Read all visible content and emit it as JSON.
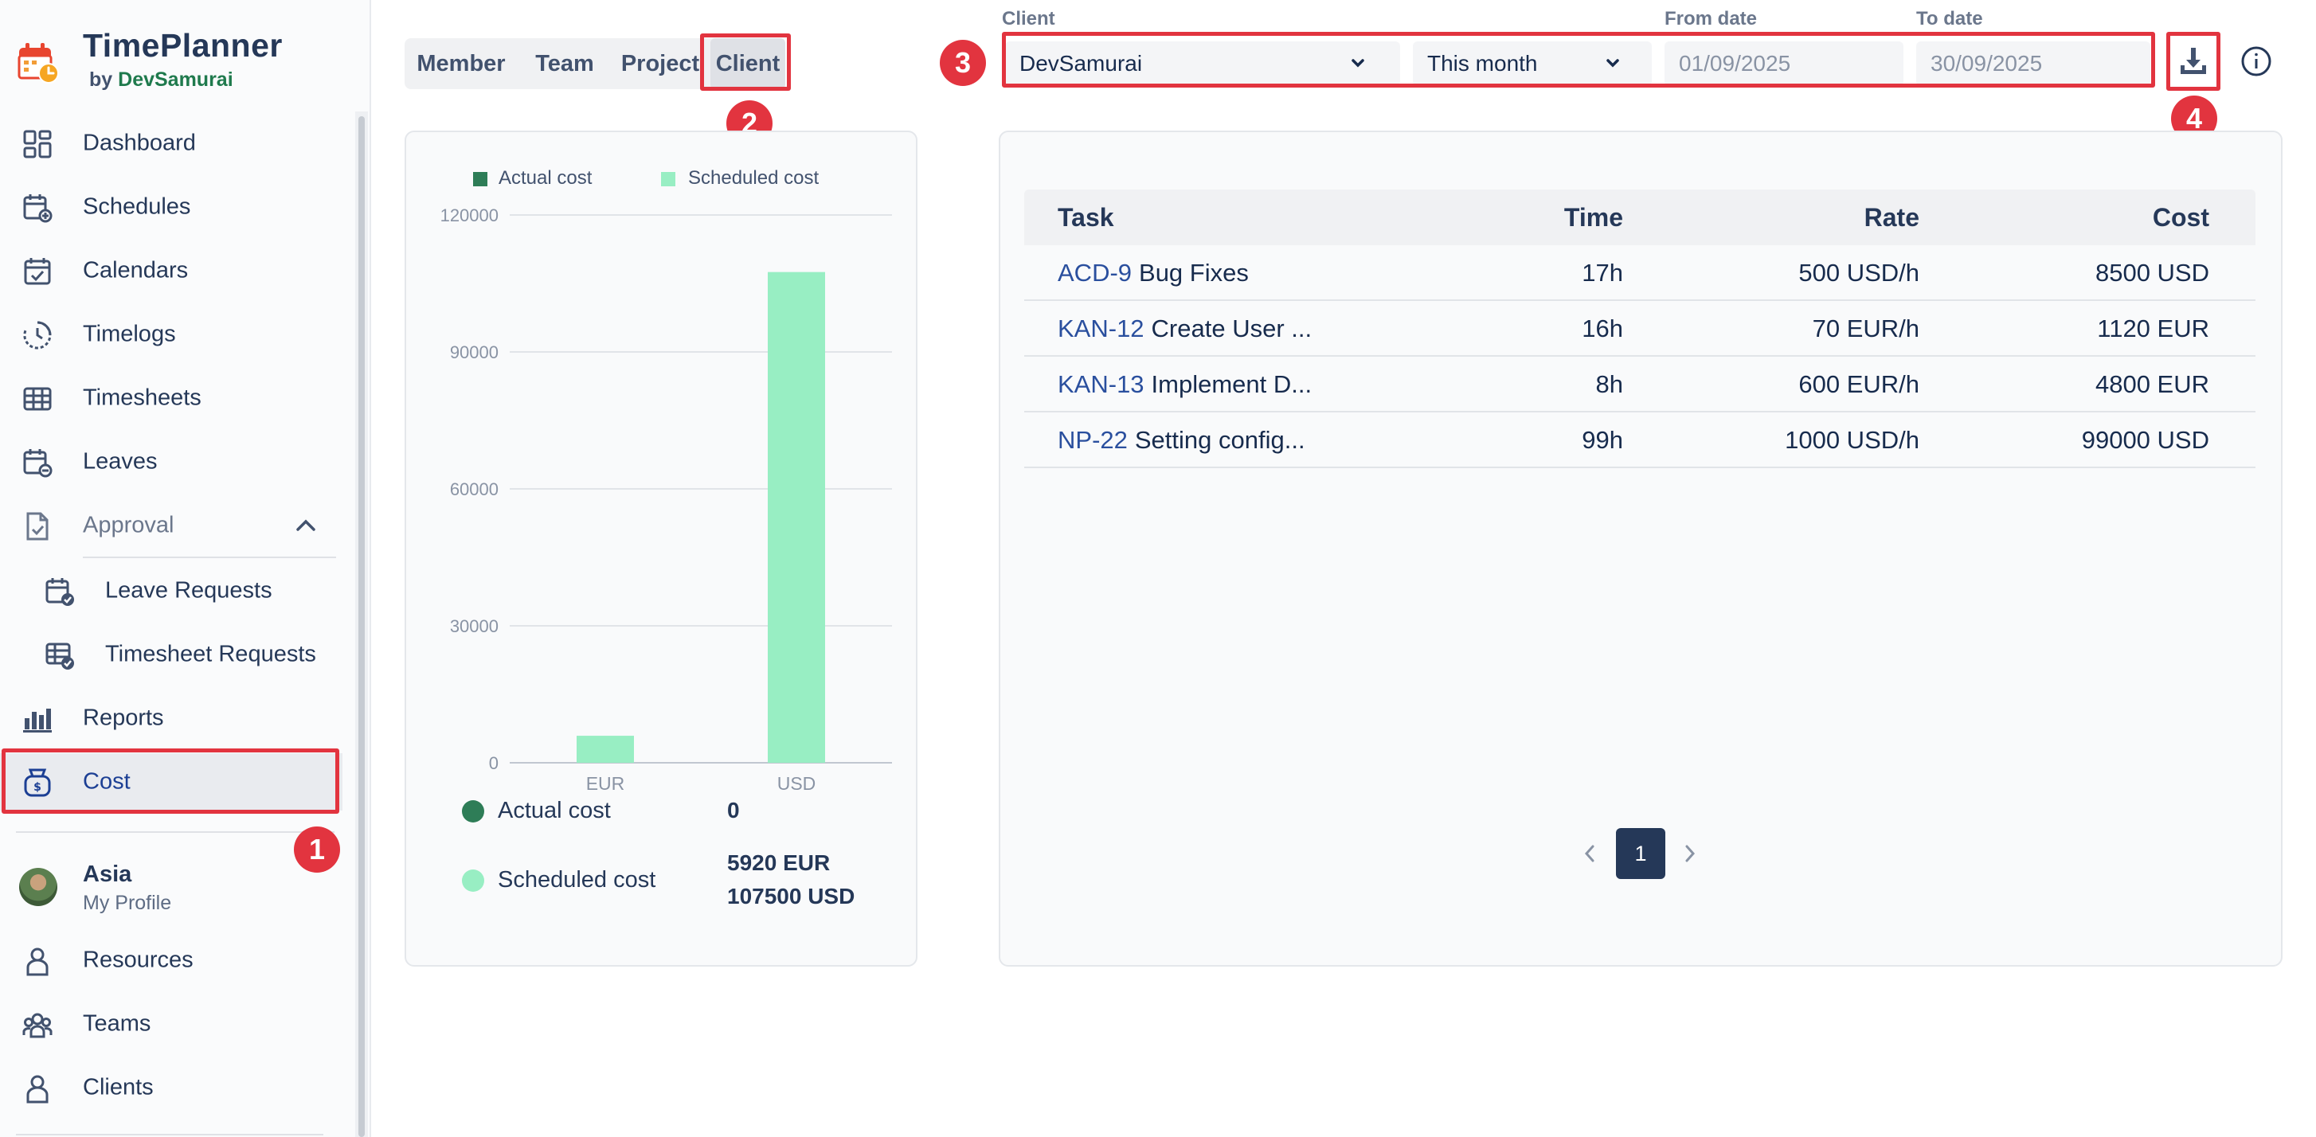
{
  "app": {
    "title": "TimePlanner",
    "by": "by",
    "by_name": "DevSamurai"
  },
  "sidebar": {
    "items": [
      {
        "label": "Dashboard",
        "icon": "dashboard-icon"
      },
      {
        "label": "Schedules",
        "icon": "calendar-add-icon"
      },
      {
        "label": "Calendars",
        "icon": "calendar-check-icon"
      },
      {
        "label": "Timelogs",
        "icon": "clock-icon"
      },
      {
        "label": "Timesheets",
        "icon": "grid-table-icon"
      },
      {
        "label": "Leaves",
        "icon": "calendar-minus-icon"
      },
      {
        "label": "Approval",
        "icon": "document-check-icon",
        "expanded": true
      },
      {
        "label": "Leave Requests",
        "icon": "calendar-badge-icon"
      },
      {
        "label": "Timesheet Requests",
        "icon": "table-badge-icon"
      },
      {
        "label": "Reports",
        "icon": "bar-chart-icon"
      },
      {
        "label": "Cost",
        "icon": "money-bag-icon",
        "active": true
      }
    ],
    "profile": {
      "name": "Asia",
      "sub": "My Profile"
    },
    "bottom_items": [
      {
        "label": "Resources",
        "icon": "person-icon"
      },
      {
        "label": "Teams",
        "icon": "people-icon"
      },
      {
        "label": "Clients",
        "icon": "person-icon"
      }
    ]
  },
  "tabs": [
    {
      "label": "Member"
    },
    {
      "label": "Team"
    },
    {
      "label": "Project"
    },
    {
      "label": "Client",
      "active": true
    }
  ],
  "filters": {
    "client_label": "Client",
    "client_value": "DevSamurai",
    "period_value": "This month",
    "from_label": "From date",
    "from_value": "01/09/2025",
    "to_label": "To date",
    "to_value": "30/09/2025"
  },
  "annotations": [
    "1",
    "2",
    "3",
    "4"
  ],
  "chart_data": {
    "type": "bar",
    "categories": [
      "EUR",
      "USD"
    ],
    "series": [
      {
        "name": "Actual cost",
        "values": [
          0,
          0
        ],
        "color": "#2e7d57"
      },
      {
        "name": "Scheduled cost",
        "values": [
          5920,
          107500
        ],
        "color": "#98eec3"
      }
    ],
    "ylim": [
      0,
      120000
    ],
    "yticks": [
      "0",
      "30000",
      "60000",
      "90000",
      "120000"
    ],
    "grid": true,
    "legend": "top-left"
  },
  "summary": {
    "actual_label": "Actual cost",
    "actual_value": "0",
    "scheduled_label": "Scheduled cost",
    "scheduled_values": [
      "5920 EUR",
      "107500 USD"
    ]
  },
  "table": {
    "headers": {
      "task": "Task",
      "time": "Time",
      "rate": "Rate",
      "cost": "Cost"
    },
    "rows": [
      {
        "key": "ACD-9",
        "name": "Bug Fixes",
        "time": "17h",
        "rate": "500 USD/h",
        "cost": "8500 USD"
      },
      {
        "key": "KAN-12",
        "name": "Create User ...",
        "time": "16h",
        "rate": "70 EUR/h",
        "cost": "1120 EUR"
      },
      {
        "key": "KAN-13",
        "name": "Implement D...",
        "time": "8h",
        "rate": "600 EUR/h",
        "cost": "4800 EUR"
      },
      {
        "key": "NP-22",
        "name": "Setting config...",
        "time": "99h",
        "rate": "1000 USD/h",
        "cost": "99000 USD"
      }
    ]
  },
  "pagination": {
    "current": "1"
  }
}
